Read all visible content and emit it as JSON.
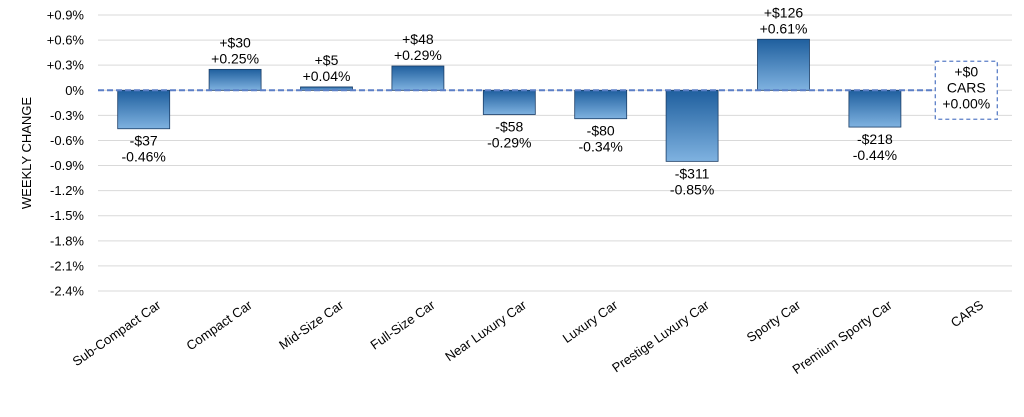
{
  "chart_data": {
    "type": "bar",
    "ylabel": "WEEKLY CHANGE",
    "ylim": [
      -2.4,
      0.9
    ],
    "yticks": [
      0.9,
      0.6,
      0.3,
      0,
      -0.3,
      -0.6,
      -0.9,
      -1.2,
      -1.5,
      -1.8,
      -2.1,
      -2.4
    ],
    "ytick_labels": [
      "+0.9%",
      "+0.6%",
      "+0.3%",
      "0%",
      "-0.3%",
      "-0.6%",
      "-0.9%",
      "-1.2%",
      "-1.5%",
      "-1.8%",
      "-2.1%",
      "-2.4%"
    ],
    "grid": true,
    "categories": [
      "Sub-Compact Car",
      "Compact Car",
      "Mid-Size Car",
      "Full-Size Car",
      "Near Luxury Car",
      "Luxury Car",
      "Prestige Luxury Car",
      "Sporty Car",
      "Premium Sporty Car",
      "CARS"
    ],
    "values": [
      -0.46,
      0.25,
      0.04,
      0.29,
      -0.29,
      -0.34,
      -0.85,
      0.61,
      -0.44,
      0.0
    ],
    "dollar_labels": [
      "-$37",
      "+$30",
      "+$5",
      "+$48",
      "-$58",
      "-$80",
      "-$311",
      "+$126",
      "-$218",
      "+$0"
    ],
    "percent_labels": [
      "-0.46%",
      "+0.25%",
      "+0.04%",
      "+0.29%",
      "-0.29%",
      "-0.34%",
      "-0.85%",
      "+0.61%",
      "-0.44%",
      "+0.00%"
    ],
    "total_box_label": "CARS",
    "colors": {
      "bar_dark": "#1f5f9e",
      "bar_light": "#7fb2e0",
      "bar_edge": "#1a3d66",
      "zero_line": "#5b7fc7",
      "grid": "#d9d9d9"
    }
  }
}
